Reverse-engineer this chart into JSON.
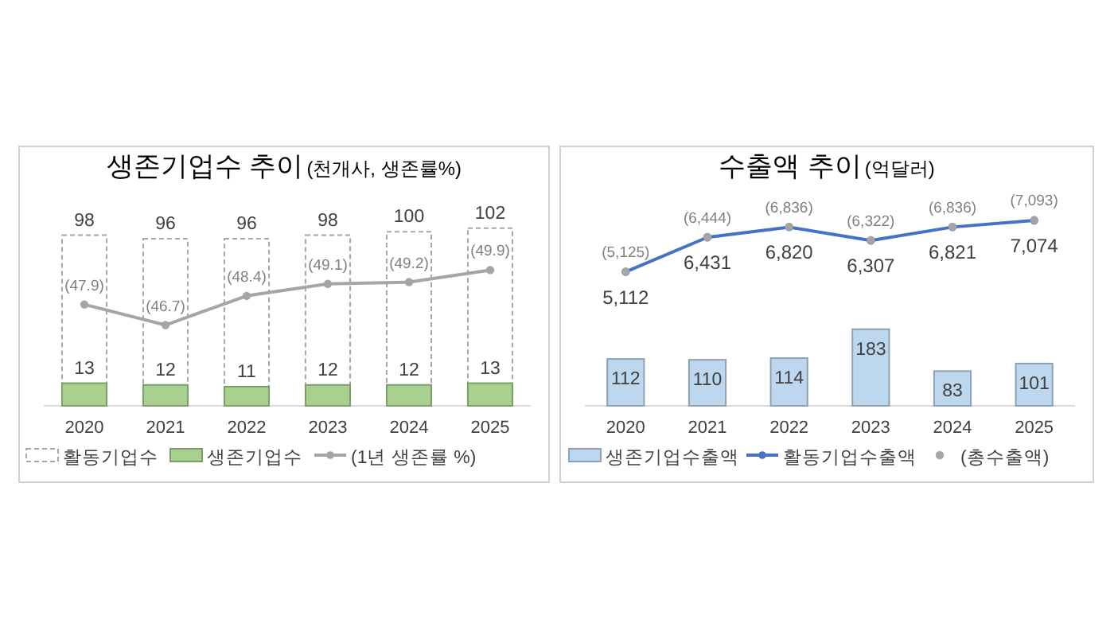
{
  "chart_data": [
    {
      "type": "bar",
      "title": "생존기업수 추이",
      "subtitle": "(천개사, 생존률%)",
      "categories": [
        "2020",
        "2021",
        "2022",
        "2023",
        "2024",
        "2025"
      ],
      "ylim": [
        0,
        149
      ],
      "y2lim": [
        42,
        57.1
      ],
      "tick_labels": "x",
      "legend": "bottom",
      "series": [
        {
          "name": "활동기업수",
          "type": "bar",
          "color": "#a6a6a6",
          "line_style": "dashed",
          "values": [
            98,
            96,
            96,
            98,
            100,
            102
          ],
          "value_labels": [
            "98",
            "96",
            "96",
            "98",
            "100",
            "102"
          ]
        },
        {
          "name": "생존기업수",
          "type": "bar",
          "color": "#a9d18e",
          "values": [
            13,
            12,
            11,
            12,
            12,
            13
          ],
          "value_labels": [
            "13",
            "12",
            "11",
            "12",
            "12",
            "13"
          ]
        },
        {
          "name": "(1년 생존률 %)",
          "type": "line",
          "axis": "y2",
          "marker": "circle",
          "color": "#a5a5a5",
          "values": [
            47.9,
            46.7,
            48.4,
            49.1,
            49.2,
            49.9
          ],
          "value_labels": [
            "(47.9)",
            "(46.7)",
            "(48.4)",
            "(49.1)",
            "(49.2)",
            "(49.9)"
          ]
        }
      ]
    },
    {
      "type": "bar",
      "title": "수출액 추이",
      "subtitle": "(억달러)",
      "categories": [
        "2020",
        "2021",
        "2022",
        "2023",
        "2024",
        "2025"
      ],
      "ylim": [
        0,
        620
      ],
      "y2lim": [
        0,
        9900
      ],
      "tick_labels": "x",
      "legend": "bottom",
      "series": [
        {
          "name": "생존기업수출액",
          "type": "bar",
          "color": "#bdd7ee",
          "values": [
            112,
            110,
            114,
            183,
            83,
            101
          ],
          "value_labels": [
            "112",
            "110",
            "114",
            "183",
            "83",
            "101"
          ]
        },
        {
          "name": "활동기업수출액",
          "type": "line",
          "axis": "y2",
          "marker": "circle",
          "color": "#4472c4",
          "values": [
            5112,
            6431,
            6820,
            6307,
            6821,
            7074
          ],
          "value_labels": [
            "5,112",
            "6,431",
            "6,820",
            "6,307",
            "6,821",
            "7,074"
          ]
        },
        {
          "name": "(총수출액)",
          "type": "scatter",
          "axis": "y2",
          "marker": "circle",
          "color": "#a5a5a5",
          "values": [
            5125,
            6444,
            6836,
            6322,
            6836,
            7093
          ],
          "value_labels": [
            "(5,125)",
            "(6,444)",
            "(6,836)",
            "(6,322)",
            "(6,836)",
            "(7,093)"
          ]
        }
      ]
    }
  ]
}
